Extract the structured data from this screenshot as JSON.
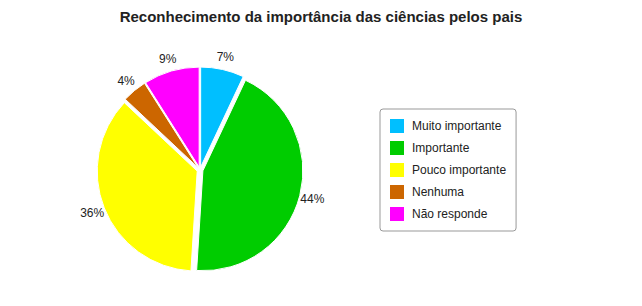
{
  "chart_data": {
    "type": "pie",
    "title": "Reconhecimento da importância das ciências pelos pais",
    "categories": [
      "Muito importante",
      "Importante",
      "Pouco importante",
      "Nenhuma",
      "Não responde"
    ],
    "values": [
      7,
      44,
      36,
      4,
      9
    ],
    "value_labels": [
      "7%",
      "44%",
      "36%",
      "4%",
      "9%"
    ],
    "colors": [
      "#00BFFF",
      "#00CC00",
      "#FFFF00",
      "#CC6600",
      "#FF00FF"
    ],
    "data_labels": true,
    "legend": "right"
  }
}
